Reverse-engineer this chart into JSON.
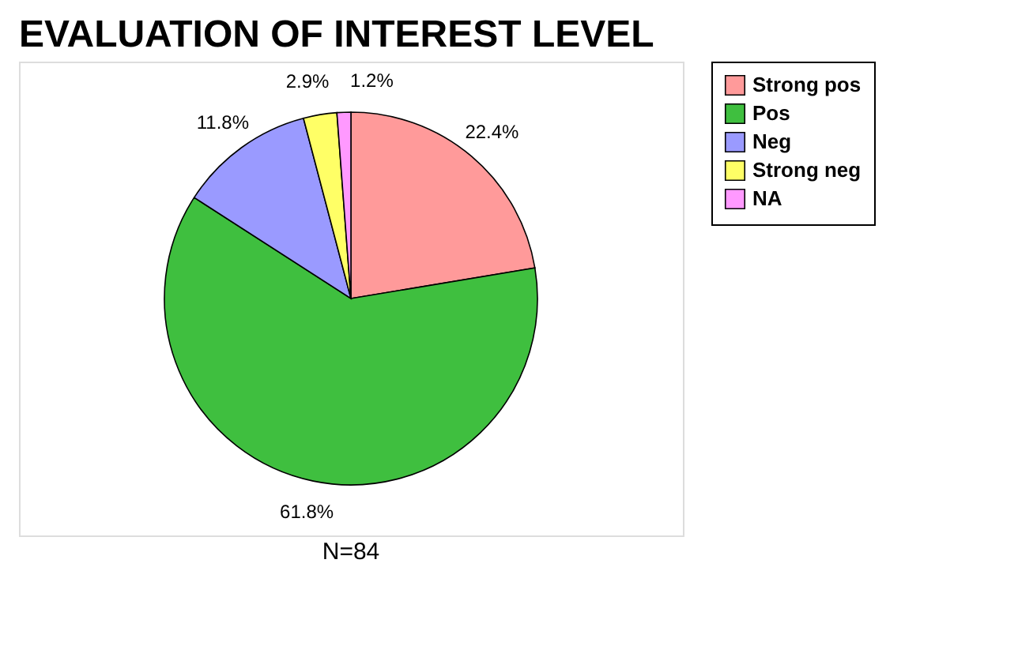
{
  "chart_data": {
    "type": "pie",
    "title": "EVALUATION OF INTEREST LEVEL",
    "categories": [
      "Strong pos",
      "Pos",
      "Neg",
      "Strong neg",
      "NA"
    ],
    "values": [
      22.4,
      61.8,
      11.8,
      2.9,
      1.2
    ],
    "value_labels": [
      "22.4%",
      "61.8%",
      "11.8%",
      "2.9%",
      "1.2%"
    ],
    "colors": [
      "#ff9a9a",
      "#3fbf3f",
      "#9a9aff",
      "#ffff66",
      "#ff99ff"
    ],
    "legend": "right",
    "annotations": [
      "N=84"
    ]
  }
}
